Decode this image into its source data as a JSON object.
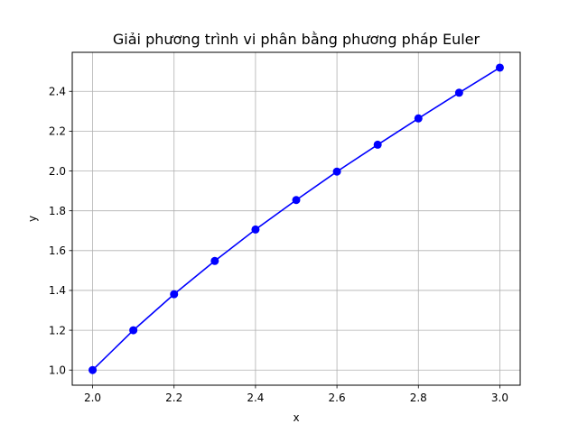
{
  "chart_data": {
    "type": "line",
    "title": "Giải phương trình vi phân bằng phương pháp Euler",
    "xlabel": "x",
    "ylabel": "y",
    "xlim": [
      1.95,
      3.05
    ],
    "ylim": [
      0.924,
      2.596
    ],
    "grid": true,
    "x_ticks": [
      "2.0",
      "2.2",
      "2.4",
      "2.6",
      "2.8",
      "3.0"
    ],
    "y_ticks": [
      "1.0",
      "1.2",
      "1.4",
      "1.6",
      "1.8",
      "2.0",
      "2.2",
      "2.4"
    ],
    "series": [
      {
        "color": "#0000ff",
        "marker": "circle",
        "x": [
          2.0,
          2.1,
          2.2,
          2.3,
          2.4,
          2.5,
          2.6,
          2.7,
          2.8,
          2.9,
          3.0
        ],
        "values": [
          1.0,
          1.2,
          1.381,
          1.548,
          1.706,
          1.854,
          1.997,
          2.132,
          2.264,
          2.393,
          2.519
        ]
      }
    ]
  }
}
